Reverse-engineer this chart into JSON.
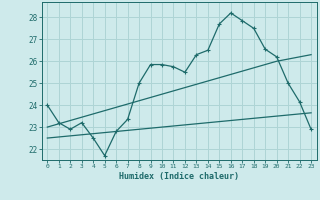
{
  "xlabel": "Humidex (Indice chaleur)",
  "xlim": [
    -0.5,
    23.5
  ],
  "ylim": [
    21.5,
    28.7
  ],
  "yticks": [
    22,
    23,
    24,
    25,
    26,
    27,
    28
  ],
  "xticks": [
    0,
    1,
    2,
    3,
    4,
    5,
    6,
    7,
    8,
    9,
    10,
    11,
    12,
    13,
    14,
    15,
    16,
    17,
    18,
    19,
    20,
    21,
    22,
    23
  ],
  "background_color": "#ceeaeb",
  "grid_color": "#aed4d5",
  "line_color": "#1e6b6b",
  "main_line_x": [
    0,
    1,
    2,
    3,
    4,
    5,
    6,
    7,
    8,
    9,
    10,
    11,
    12,
    13,
    14,
    15,
    16,
    17,
    18,
    19,
    20,
    21,
    22,
    23
  ],
  "main_line_y": [
    24.0,
    23.2,
    22.9,
    23.2,
    22.5,
    21.7,
    22.8,
    23.35,
    25.0,
    25.85,
    25.85,
    25.75,
    25.5,
    26.3,
    26.5,
    27.7,
    28.2,
    27.85,
    27.5,
    26.55,
    26.2,
    25.0,
    24.15,
    22.9
  ],
  "trend_line1_x": [
    0,
    1,
    2,
    3,
    4,
    5,
    6,
    7,
    8,
    9,
    10,
    11,
    12,
    13,
    14,
    15,
    16,
    17,
    18,
    19,
    20,
    21,
    22,
    23
  ],
  "trend_line1_y": [
    23.0,
    23.15,
    23.3,
    23.45,
    23.6,
    23.75,
    23.9,
    24.05,
    24.2,
    24.35,
    24.5,
    24.65,
    24.8,
    24.95,
    25.1,
    25.25,
    25.4,
    25.55,
    25.7,
    25.85,
    26.0,
    26.1,
    26.2,
    26.3
  ],
  "trend_line2_x": [
    0,
    1,
    2,
    3,
    4,
    5,
    6,
    7,
    8,
    9,
    10,
    11,
    12,
    13,
    14,
    15,
    16,
    17,
    18,
    19,
    20,
    21,
    22,
    23
  ],
  "trend_line2_y": [
    22.5,
    22.55,
    22.6,
    22.65,
    22.7,
    22.75,
    22.8,
    22.85,
    22.9,
    22.95,
    23.0,
    23.05,
    23.1,
    23.15,
    23.2,
    23.25,
    23.3,
    23.35,
    23.4,
    23.45,
    23.5,
    23.55,
    23.6,
    23.65
  ]
}
